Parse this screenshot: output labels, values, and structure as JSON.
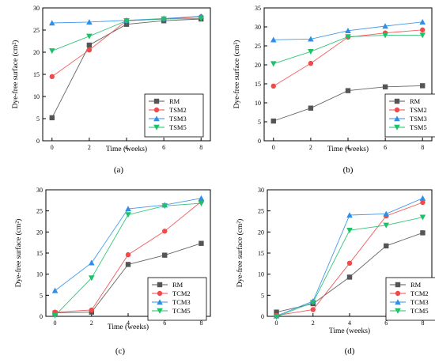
{
  "chart_data": [
    {
      "type": "line",
      "panel_label": "(a)",
      "xlabel": "Time (weeks)",
      "ylabel": "Dye-free surface (cm²)",
      "xlim": [
        -0.5,
        8.5
      ],
      "ylim": [
        0,
        30
      ],
      "xticks": [
        0,
        2,
        4,
        6,
        8
      ],
      "yticks": [
        0,
        5,
        10,
        15,
        20,
        25,
        30
      ],
      "legend_position": "bottom-right",
      "x": [
        0,
        2,
        4,
        6,
        8
      ],
      "series": [
        {
          "name": "RM",
          "color": "#555555",
          "marker": "square",
          "values": [
            5.2,
            21.6,
            26.3,
            27.1,
            27.5
          ]
        },
        {
          "name": "TSM2",
          "color": "#f04a4a",
          "marker": "circle",
          "values": [
            14.5,
            20.5,
            27.1,
            27.5,
            28.0
          ]
        },
        {
          "name": "TSM3",
          "color": "#2f8fe8",
          "marker": "triangle-up",
          "values": [
            26.6,
            26.8,
            27.2,
            27.6,
            28.1
          ]
        },
        {
          "name": "TSM5",
          "color": "#1ec06a",
          "marker": "triangle-down",
          "values": [
            20.3,
            23.6,
            27.1,
            27.5,
            27.6
          ]
        }
      ]
    },
    {
      "type": "line",
      "panel_label": "(b)",
      "xlabel": "Time (weeks)",
      "ylabel": "Dye-free surface (cm²)",
      "xlim": [
        -0.5,
        8.5
      ],
      "ylim": [
        0,
        35
      ],
      "xticks": [
        0,
        2,
        4,
        6,
        8
      ],
      "yticks": [
        0,
        5,
        10,
        15,
        20,
        25,
        30,
        35
      ],
      "legend_position": "bottom-right",
      "x": [
        0,
        2,
        4,
        6,
        8
      ],
      "series": [
        {
          "name": "RM",
          "color": "#555555",
          "marker": "square",
          "values": [
            5.2,
            8.6,
            13.2,
            14.2,
            14.5
          ]
        },
        {
          "name": "TSM2",
          "color": "#f04a4a",
          "marker": "circle",
          "values": [
            14.4,
            20.4,
            27.3,
            28.4,
            29.2
          ]
        },
        {
          "name": "TSM3",
          "color": "#2f8fe8",
          "marker": "triangle-up",
          "values": [
            26.6,
            26.8,
            29.0,
            30.2,
            31.3
          ]
        },
        {
          "name": "TSM5",
          "color": "#1ec06a",
          "marker": "triangle-down",
          "values": [
            20.3,
            23.5,
            27.4,
            27.8,
            27.8
          ]
        }
      ]
    },
    {
      "type": "line",
      "panel_label": "(c)",
      "xlabel": "Time (weeks)",
      "ylabel": "Dye-free surface (cm²)",
      "xlim": [
        -0.5,
        8.5
      ],
      "ylim": [
        0,
        30
      ],
      "xticks": [
        0,
        2,
        4,
        6,
        8
      ],
      "yticks": [
        0,
        5,
        10,
        15,
        20,
        25,
        30
      ],
      "legend_position": "bottom-right",
      "x": [
        0,
        2,
        4,
        6,
        8
      ],
      "series": [
        {
          "name": "RM",
          "color": "#555555",
          "marker": "square",
          "values": [
            0.8,
            1.0,
            12.3,
            14.5,
            17.3
          ]
        },
        {
          "name": "TCM2",
          "color": "#f04a4a",
          "marker": "circle",
          "values": [
            1.0,
            1.5,
            14.6,
            20.2,
            27.2
          ]
        },
        {
          "name": "TCM3",
          "color": "#2f8fe8",
          "marker": "triangle-up",
          "values": [
            6.1,
            12.7,
            25.5,
            26.4,
            28.0
          ]
        },
        {
          "name": "TCM5",
          "color": "#1ec06a",
          "marker": "triangle-down",
          "values": [
            0.2,
            9.1,
            24.1,
            26.2,
            26.8
          ]
        }
      ]
    },
    {
      "type": "line",
      "panel_label": "(d)",
      "xlabel": "Time (weeks)",
      "ylabel": "Dye-free surface (cm²)",
      "xlim": [
        -0.5,
        8.5
      ],
      "ylim": [
        0,
        30
      ],
      "xticks": [
        0,
        2,
        4,
        6,
        8
      ],
      "yticks": [
        0,
        5,
        10,
        15,
        20,
        25,
        30
      ],
      "legend_position": "bottom-right",
      "x": [
        0,
        2,
        4,
        6,
        8
      ],
      "series": [
        {
          "name": "RM",
          "color": "#555555",
          "marker": "square",
          "values": [
            1.0,
            3.0,
            9.3,
            16.7,
            19.8
          ]
        },
        {
          "name": "TCM2",
          "color": "#f04a4a",
          "marker": "circle",
          "values": [
            0.2,
            1.6,
            12.6,
            23.8,
            27.0
          ]
        },
        {
          "name": "TCM3",
          "color": "#2f8fe8",
          "marker": "triangle-up",
          "values": [
            0.1,
            3.6,
            24.0,
            24.3,
            28.0
          ]
        },
        {
          "name": "TCM5",
          "color": "#1ec06a",
          "marker": "triangle-down",
          "values": [
            -0.1,
            3.3,
            20.4,
            21.6,
            23.5
          ]
        }
      ]
    }
  ]
}
